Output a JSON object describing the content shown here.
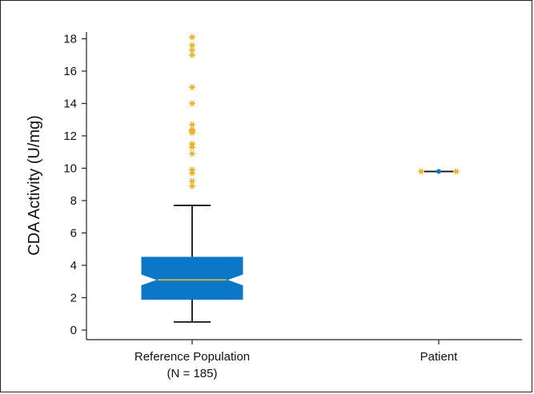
{
  "chart_data": {
    "type": "boxplot",
    "title": "",
    "ylabel": "CDA Activity (U/mg)",
    "xlabel": "",
    "ylim": [
      0,
      18.5
    ],
    "yticks": [
      0,
      2,
      4,
      6,
      8,
      10,
      12,
      14,
      16,
      18
    ],
    "grid": false,
    "categories": [
      {
        "label": "Reference Population",
        "sublabel": "(N = 185)"
      },
      {
        "label": "Patient",
        "sublabel": ""
      }
    ],
    "series": [
      {
        "category": "Reference Population",
        "whisker_low": 0.5,
        "q1": 1.9,
        "median": 3.1,
        "q3": 4.5,
        "whisker_high": 7.7,
        "notch_low": 2.75,
        "notch_high": 3.45,
        "outliers": [
          8.9,
          9.2,
          9.7,
          9.9,
          10.9,
          11.3,
          11.5,
          12.2,
          12.3,
          12.4,
          12.7,
          14.0,
          15.0,
          17.0,
          17.3,
          17.6,
          18.1
        ]
      },
      {
        "category": "Patient",
        "value": 9.8
      }
    ],
    "colors": {
      "box_fill": "#0a78c7",
      "median_line": "#e8b53a",
      "outlier": "#e6b52c",
      "whisker": "#111111",
      "patient_point": "#0a78c7"
    }
  }
}
